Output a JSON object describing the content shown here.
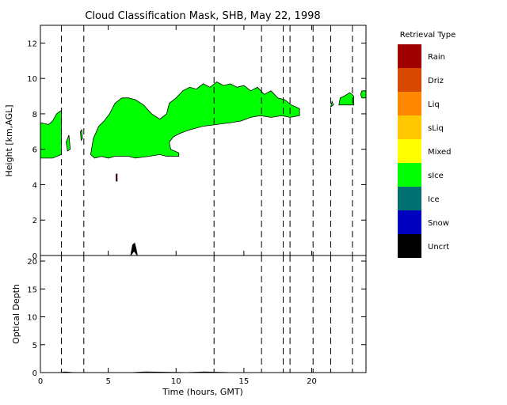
{
  "chart_data": [
    {
      "type": "heatmap",
      "id": "classification",
      "title": "Cloud Classification Mask, SHB, May 22, 1998",
      "ylabel": "Height [km,AGL]",
      "xlim": [
        0,
        24
      ],
      "ylim": [
        0,
        13
      ],
      "yticks": [
        0,
        2,
        4,
        6,
        8,
        10,
        12
      ],
      "xticks_labeled": [
        0,
        5,
        10,
        15,
        20
      ],
      "grid": false,
      "legend_title": "Retrieval Type",
      "legend_placement": "right",
      "categories": [
        {
          "label": "Rain",
          "color": "#a00000"
        },
        {
          "label": "Driz",
          "color": "#d84800"
        },
        {
          "label": "Liq",
          "color": "#ff8800"
        },
        {
          "label": "sLiq",
          "color": "#ffc800"
        },
        {
          "label": "Mixed",
          "color": "#ffff00"
        },
        {
          "label": "sIce",
          "color": "#00ff00"
        },
        {
          "label": "Ice",
          "color": "#007070"
        },
        {
          "label": "Snow",
          "color": "#0000c0"
        },
        {
          "label": "Uncrt",
          "color": "#000000"
        }
      ],
      "regions": [
        {
          "category": "sIce",
          "outline": [
            [
              0,
              5.5
            ],
            [
              0,
              7.5
            ],
            [
              0.6,
              7.4
            ],
            [
              0.9,
              7.6
            ],
            [
              1.2,
              8.0
            ],
            [
              1.55,
              8.2
            ],
            [
              1.55,
              5.7
            ],
            [
              0.9,
              5.5
            ]
          ]
        },
        {
          "category": "sIce",
          "outline": [
            [
              1.9,
              6.4
            ],
            [
              2.1,
              6.8
            ],
            [
              2.2,
              6.0
            ],
            [
              2.0,
              5.9
            ]
          ]
        },
        {
          "category": "sIce",
          "outline": [
            [
              2.95,
              7.0
            ],
            [
              3.0,
              6.5
            ],
            [
              3.1,
              6.6
            ],
            [
              3.05,
              7.1
            ]
          ]
        },
        {
          "category": "sIce",
          "outline": [
            [
              3.7,
              5.7
            ],
            [
              3.9,
              6.6
            ],
            [
              4.3,
              7.3
            ],
            [
              4.7,
              7.6
            ],
            [
              5.1,
              8.0
            ],
            [
              5.5,
              8.6
            ],
            [
              6.0,
              8.9
            ],
            [
              6.5,
              8.9
            ],
            [
              7.0,
              8.8
            ],
            [
              7.6,
              8.5
            ],
            [
              8.2,
              8.0
            ],
            [
              8.8,
              7.7
            ],
            [
              9.3,
              8.0
            ],
            [
              9.5,
              8.6
            ],
            [
              10.0,
              8.9
            ],
            [
              10.5,
              9.3
            ],
            [
              11.0,
              9.5
            ],
            [
              11.5,
              9.4
            ],
            [
              12.0,
              9.7
            ],
            [
              12.5,
              9.5
            ],
            [
              13.0,
              9.8
            ],
            [
              13.5,
              9.6
            ],
            [
              14.0,
              9.7
            ],
            [
              14.5,
              9.5
            ],
            [
              15.0,
              9.6
            ],
            [
              15.5,
              9.3
            ],
            [
              16.0,
              9.5
            ],
            [
              16.5,
              9.1
            ],
            [
              17.0,
              9.3
            ],
            [
              17.5,
              8.9
            ],
            [
              18.0,
              8.8
            ],
            [
              18.5,
              8.5
            ],
            [
              19.1,
              8.3
            ],
            [
              19.1,
              7.9
            ],
            [
              18.4,
              7.8
            ],
            [
              17.8,
              7.9
            ],
            [
              17.0,
              7.8
            ],
            [
              16.2,
              7.9
            ],
            [
              15.5,
              7.8
            ],
            [
              14.8,
              7.6
            ],
            [
              14.0,
              7.5
            ],
            [
              13.0,
              7.4
            ],
            [
              12.0,
              7.3
            ],
            [
              11.0,
              7.1
            ],
            [
              10.3,
              6.9
            ],
            [
              9.8,
              6.7
            ],
            [
              9.5,
              6.4
            ],
            [
              9.6,
              6.0
            ],
            [
              10.2,
              5.8
            ],
            [
              10.2,
              5.6
            ],
            [
              9.3,
              5.6
            ],
            [
              8.8,
              5.7
            ],
            [
              8.0,
              5.6
            ],
            [
              7.0,
              5.5
            ],
            [
              6.5,
              5.6
            ],
            [
              5.5,
              5.6
            ],
            [
              5.0,
              5.5
            ],
            [
              4.5,
              5.6
            ],
            [
              4.0,
              5.5
            ]
          ]
        },
        {
          "category": "sIce",
          "outline": [
            [
              22.0,
              8.5
            ],
            [
              22.1,
              8.9
            ],
            [
              22.4,
              9.0
            ],
            [
              22.8,
              9.2
            ],
            [
              23.1,
              9.0
            ],
            [
              23.1,
              8.5
            ],
            [
              22.5,
              8.5
            ]
          ]
        },
        {
          "category": "sIce",
          "outline": [
            [
              23.6,
              9.1
            ],
            [
              23.7,
              9.3
            ],
            [
              24.0,
              9.3
            ],
            [
              24.0,
              8.9
            ],
            [
              23.7,
              8.9
            ]
          ]
        },
        {
          "category": "sIce",
          "outline": [
            [
              21.4,
              8.4
            ],
            [
              21.5,
              8.7
            ],
            [
              21.6,
              8.5
            ]
          ]
        },
        {
          "category": "Uncrt",
          "outline": [
            [
              6.65,
              0
            ],
            [
              6.8,
              0.6
            ],
            [
              6.95,
              0.7
            ],
            [
              7.05,
              0.4
            ],
            [
              7.15,
              0
            ],
            [
              6.9,
              0.25
            ]
          ]
        },
        {
          "category": "Rain",
          "outline": [
            [
              5.58,
              4.6
            ],
            [
              5.66,
              4.6
            ],
            [
              5.66,
              4.2
            ],
            [
              5.58,
              4.2
            ]
          ]
        }
      ],
      "dashed_vlines": [
        1.55,
        3.2,
        12.8,
        16.3,
        17.9,
        18.4,
        20.1,
        21.4,
        23.0
      ]
    },
    {
      "type": "line",
      "id": "optical_depth",
      "xlabel": "Time (hours, GMT)",
      "ylabel": "Optical Depth",
      "xlim": [
        0,
        24
      ],
      "ylim": [
        0,
        21
      ],
      "yticks": [
        0,
        5,
        10,
        15,
        20
      ],
      "xticks": [
        0,
        5,
        10,
        15,
        20
      ],
      "grid": false,
      "series": [
        {
          "x": [
            0,
            1.5,
            1.8,
            2.4,
            6.8,
            7.7,
            10.8,
            12.0,
            14.0,
            16.3,
            24
          ],
          "values": [
            0,
            0,
            0.1,
            0,
            0,
            0.1,
            0,
            0.1,
            0,
            0,
            0
          ]
        }
      ],
      "dashed_vlines": [
        1.55,
        3.2,
        12.8,
        16.3,
        17.9,
        18.4,
        20.1,
        21.4,
        23.0
      ]
    }
  ]
}
